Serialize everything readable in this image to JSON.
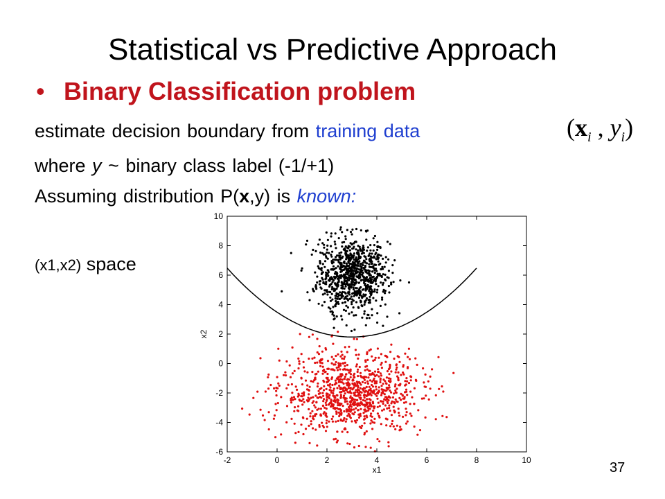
{
  "slide": {
    "title": "Statistical vs Predictive Approach",
    "bullet_marker": "•",
    "bullet": "Binary Classification problem",
    "line1_a": "estimate decision boundary from ",
    "line1_b": "training data",
    "formula_open": "(",
    "formula_x": "x",
    "formula_xsub": "i",
    "formula_sep": " , ",
    "formula_y": "y",
    "formula_ysub": "i",
    "formula_close": ")",
    "line2_a": "where ",
    "line2_y": "y",
    "line2_b": " ~ binary class label (-1/+1)",
    "line3_a": "Assuming distribution P(",
    "line3_x": "x",
    "line3_b": ",y) is ",
    "line3_c": "known:",
    "space_small": "(x1,x2)",
    "space_big": " space",
    "slide_number": "37"
  },
  "chart_data": {
    "type": "scatter",
    "xlabel": "x1",
    "ylabel": "x2",
    "xlim": [
      -2,
      10
    ],
    "ylim": [
      -6,
      10
    ],
    "xticks": [
      -2,
      0,
      2,
      4,
      6,
      8,
      10
    ],
    "yticks": [
      -6,
      -4,
      -2,
      0,
      2,
      4,
      6,
      8,
      10
    ],
    "series": [
      {
        "color": "#000000",
        "center": [
          3,
          6
        ],
        "spread": [
          0.7,
          1.3
        ],
        "count": 900,
        "y_min": 1.8
      },
      {
        "color": "#e01010",
        "center": [
          3,
          -2
        ],
        "spread": [
          1.4,
          1.4
        ],
        "count": 1000
      }
    ],
    "boundary": {
      "color": "#000000",
      "x_from": -2,
      "x_to": 8,
      "vertex": [
        3,
        1.8
      ],
      "curvature": 0.187
    }
  }
}
